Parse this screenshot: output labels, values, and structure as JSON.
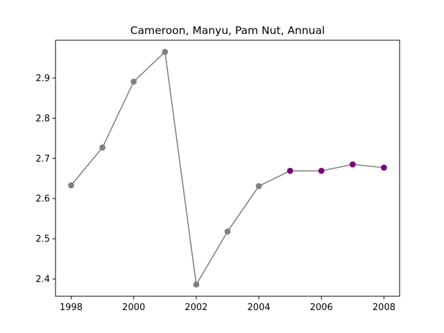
{
  "chart_data": {
    "type": "line",
    "title": "Cameroon, Manyu, Pam Nut, Annual",
    "xlabel": "",
    "ylabel": "",
    "x": [
      1998,
      1999,
      2000,
      2001,
      2002,
      2003,
      2004,
      2005,
      2006,
      2007,
      2008
    ],
    "values": [
      2.633,
      2.727,
      2.891,
      2.965,
      2.386,
      2.518,
      2.631,
      2.669,
      2.669,
      2.685,
      2.677
    ],
    "point_colors": [
      "#808080",
      "#808080",
      "#808080",
      "#808080",
      "#808080",
      "#808080",
      "#808080",
      "#800080",
      "#800080",
      "#800080",
      "#800080"
    ],
    "line_color": "#808080",
    "xlim": [
      1997.5,
      2008.5
    ],
    "ylim": [
      2.357,
      2.994
    ],
    "xticks": [
      1998,
      2000,
      2002,
      2004,
      2006,
      2008
    ],
    "yticks": [
      2.4,
      2.5,
      2.6,
      2.7,
      2.8,
      2.9
    ],
    "grid": false
  }
}
